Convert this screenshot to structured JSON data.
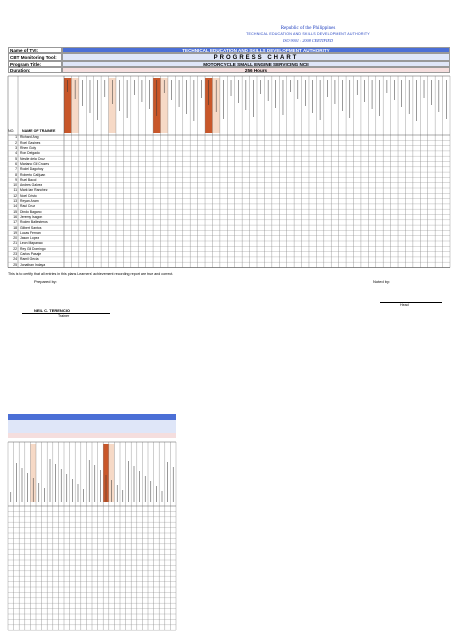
{
  "header": {
    "republic": "Republic of the Philippines",
    "agency": "TECHNICAL EDUCATION AND SKILLS DEVELOPMENT AUTHORITY",
    "iso": "ISO 9001 : 2008 CERTIFIED"
  },
  "info": {
    "tvi_label": "Name of TVI:",
    "tool_label": "CBT Monitoring Tool:",
    "program_label": "Program Title:",
    "duration_label": "Duration:",
    "tvi_value": "TECHNICAL EDUCATION AND SKILLS DEVELOPMENT AUTHORITY",
    "tool_value": "PROGRESS CHART",
    "program_value": "MOTORCYCLE SMALL ENGINE SERVICING NCII",
    "duration_value": "256 Hours"
  },
  "table": {
    "no_header": "NO.",
    "name_header": "NAME OF TRAINEE",
    "trainees": [
      "Richard Ang",
      "Roel Gasines",
      "Rhen Goly",
      "Ron Delgado",
      "Neslie dela Cruz",
      "Mariano Gil Cruzes",
      "Rodel Dagohoy",
      "Roberto Calijuan",
      "Ruel Bacol",
      "Andres Galvez",
      "Mark Ian Ranchez",
      "Noel Cristo",
      "Reyan Aram",
      "Raul Cruz",
      "Dindo Bagano",
      "Jeremy Isagon",
      "Roden Ballesteros",
      "Gilbert Santos",
      "Lucas Fernan",
      "Jason Lopez",
      "Leon Mapanao",
      "Rey Gil Domingo",
      "Carlos Pasaje",
      "Ramil Gecia",
      "Jonathan Indaya"
    ]
  },
  "certification_note": "This is to certify that all entries in this plans Learners' achievement recording report are true and correct.",
  "signatures": {
    "prepared_by": "Prepared by:",
    "noted_by": "Noted by:",
    "trainer_name": "NEIL C. TERENCIO",
    "trainer_role": "Trainer",
    "head_role": "Head"
  }
}
